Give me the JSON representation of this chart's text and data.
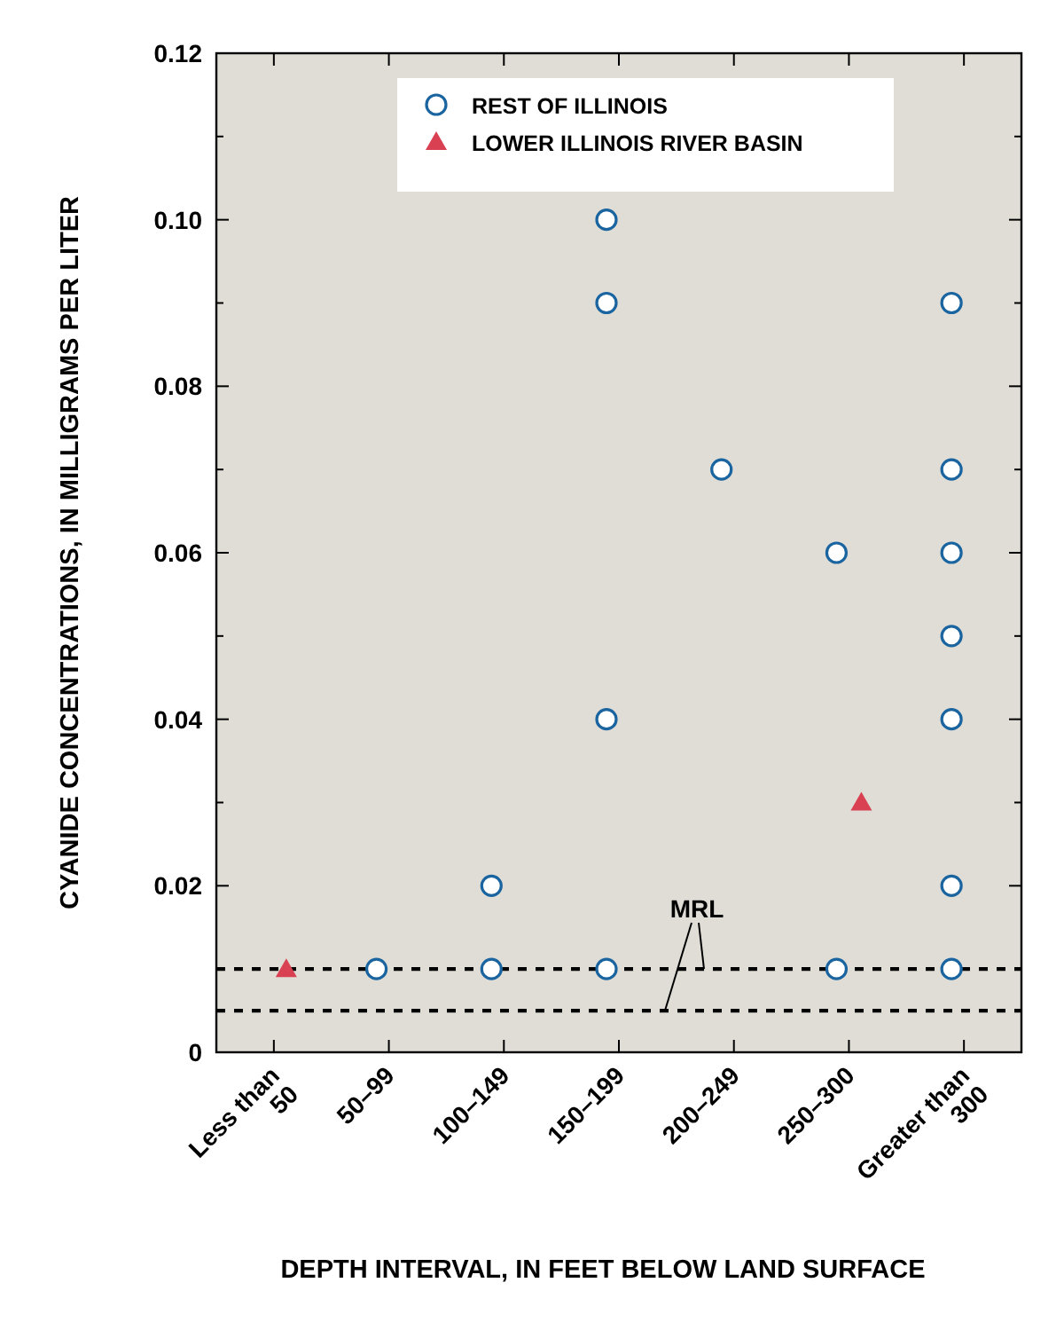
{
  "chart_data": {
    "type": "scatter",
    "xlabel": "DEPTH INTERVAL, IN FEET BELOW LAND SURFACE",
    "ylabel": "CYANIDE CONCENTRATIONS, IN MILLIGRAMS PER LITER",
    "categories": [
      "Less than\n50",
      "50–99",
      "100–149",
      "150–199",
      "200–249",
      "250–300",
      "Greater than\n300"
    ],
    "series": [
      {
        "name": "REST OF ILLINOIS",
        "color": "#1a64a0",
        "marker": "circle",
        "x": [
          "50–99",
          "100–149",
          "100–149",
          "150–199",
          "150–199",
          "150–199",
          "150–199",
          "200–249",
          "250–300",
          "250–300",
          "Greater than\n300",
          "Greater than\n300",
          "Greater than\n300",
          "Greater than\n300",
          "Greater than\n300",
          "Greater than\n300",
          "Greater than\n300"
        ],
        "values": [
          0.01,
          0.02,
          0.01,
          0.1,
          0.09,
          0.04,
          0.01,
          0.07,
          0.06,
          0.01,
          0.09,
          0.07,
          0.06,
          0.05,
          0.04,
          0.02,
          0.01
        ]
      },
      {
        "name": "LOWER ILLINOIS RIVER BASIN",
        "color": "#d94052",
        "marker": "triangle",
        "x": [
          "Less than\n50",
          "250–300"
        ],
        "values": [
          0.01,
          0.03
        ]
      }
    ],
    "ylim": [
      0,
      0.12
    ],
    "yticks": [
      0,
      {
        "value": 0.01,
        "label": null
      },
      0.02,
      {
        "value": 0.03,
        "label": null
      },
      0.04,
      {
        "value": 0.05,
        "label": null
      },
      0.06,
      {
        "value": 0.07,
        "label": null
      },
      0.08,
      {
        "value": 0.09,
        "label": null
      },
      {
        "value": 0.1,
        "label": "0.10"
      },
      {
        "value": 0.11,
        "label": null
      },
      0.12
    ],
    "ref_lines": [
      {
        "axis": "y",
        "value": 0.01,
        "label": "MRL",
        "color": "#000000",
        "line_style": "dashed"
      },
      {
        "axis": "y",
        "value": 0.005,
        "label": null,
        "color": "#000000",
        "line_style": "dashed"
      }
    ],
    "grid": false,
    "legend": "top right"
  }
}
